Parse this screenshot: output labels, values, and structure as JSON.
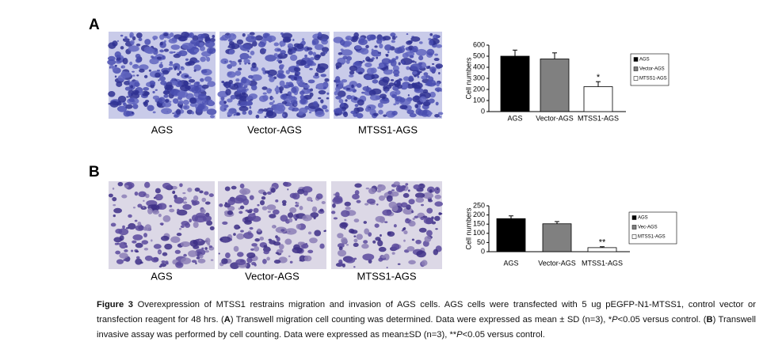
{
  "panels": [
    {
      "label": "A",
      "image_captions": [
        "AGS",
        "Vector-AGS",
        "MTSS1-AGS"
      ]
    },
    {
      "label": "B",
      "image_captions": [
        "AGS",
        "Vector-AGS",
        "MTSS1-AGS"
      ]
    }
  ],
  "chart_data": [
    {
      "type": "bar",
      "y_label": "Cell numbers",
      "categories": [
        "AGS",
        "Vector-AGS",
        "MTSS1-AGS"
      ],
      "values": [
        500,
        475,
        225
      ],
      "errors": [
        55,
        55,
        45
      ],
      "significance": [
        null,
        null,
        "*"
      ],
      "colors": [
        "#000000",
        "#808080",
        "#ffffff"
      ],
      "legend": [
        "AGS",
        "Vector-AGS",
        "MTSS1-AGS"
      ],
      "ylim": [
        0,
        600
      ],
      "yticks": [
        0,
        100,
        200,
        300,
        400,
        500,
        600
      ]
    },
    {
      "type": "bar",
      "y_label": "Cell numbers",
      "categories": [
        "AGS",
        "Vector-AGS",
        "MTSS1-AGS"
      ],
      "values": [
        180,
        152,
        22
      ],
      "errors": [
        15,
        12,
        5
      ],
      "significance": [
        null,
        null,
        "**"
      ],
      "colors": [
        "#000000",
        "#808080",
        "#ffffff"
      ],
      "legend": [
        "AGS",
        "Vec-AGS",
        "MTSS1-AGS"
      ],
      "ylim": [
        0,
        250
      ],
      "yticks": [
        0,
        50,
        100,
        150,
        200,
        250
      ]
    }
  ],
  "caption": {
    "parts": [
      "Figure 3",
      " Overexpression of MTSS1 restrains migration and invasion of AGS cells. AGS cells were transfected with 5 ug pEGFP-N1-MTSS1, control vector or transfection reagent for 48 hrs. (",
      "A",
      ") Transwell migration cell counting was determined. Data were expressed as mean ± SD (n=3), *",
      "P",
      "<0.05 versus control. (",
      "B",
      ") Transwell invasive assay was performed by cell counting. Data were expressed as mean±SD (n=3), **",
      "P",
      "<0.05 versus control."
    ]
  }
}
